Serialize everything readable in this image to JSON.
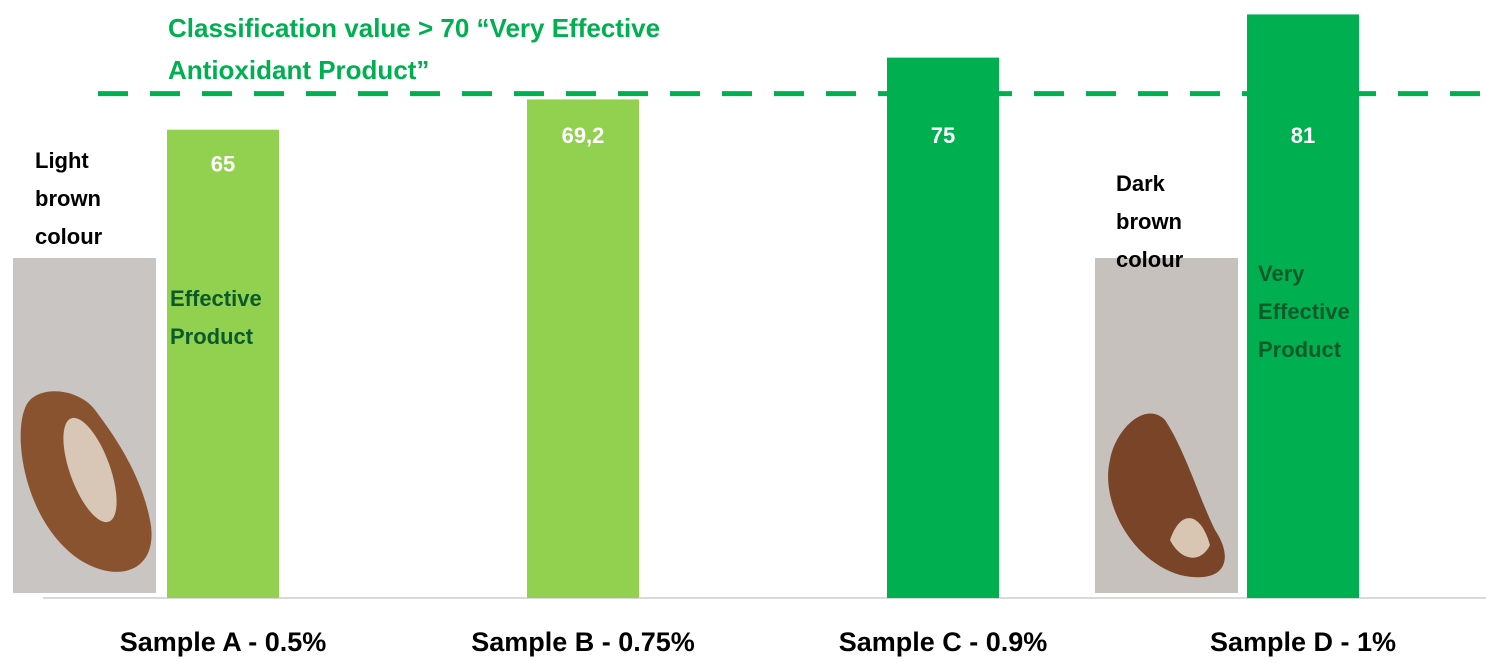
{
  "chart_data": {
    "type": "bar",
    "categories": [
      "Sample A - 0.5%",
      "Sample B - 0.75%",
      "Sample C - 0.9%",
      "Sample D - 1%"
    ],
    "values": [
      65,
      69.2,
      75,
      81
    ],
    "value_labels": [
      "65",
      "69,2",
      "75",
      "81"
    ],
    "colors": [
      "#92d050",
      "#92d050",
      "#00b050",
      "#00b050"
    ],
    "ylim": [
      0,
      83
    ],
    "threshold": {
      "value": 70,
      "color": "#00b050",
      "label_lines": [
        "Classification value > 70 “Very Effective",
        "Antioxidant Product”"
      ]
    },
    "annotations": [
      {
        "lines": [
          "Light",
          "brown",
          "colour"
        ]
      },
      {
        "lines": [
          "Effective",
          "Product"
        ]
      },
      {
        "lines": [
          "Dark",
          "brown",
          "colour"
        ]
      },
      {
        "lines": [
          "Very",
          "Effective",
          "Product"
        ]
      }
    ]
  }
}
